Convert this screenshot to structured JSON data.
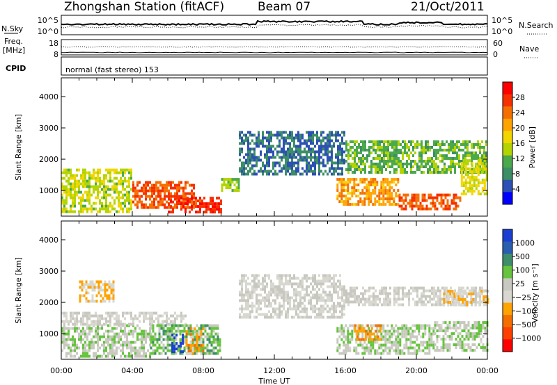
{
  "header": {
    "title": "Zhongshan Station (fitACF)",
    "beam": "Beam 07",
    "date": "21/Oct/2011"
  },
  "top_panels": {
    "nsky_label": "N.Sky",
    "nsearch_label": "N.Search",
    "sky_ticks": [
      "10^5",
      "10^0"
    ],
    "sky_right_ticks": [
      "10^5",
      "10^0"
    ],
    "freq_label": "Freq.",
    "freq_unit": "[MHz]",
    "freq_ticks": [
      "18",
      "8"
    ],
    "nave_ticks": [
      "60",
      "0"
    ],
    "nave_label": "Nave",
    "cpid_label": "CPID",
    "cpid_text": "normal (fast stereo) 153"
  },
  "x_axis": {
    "ticks": [
      "00:00",
      "04:00",
      "08:00",
      "12:00",
      "16:00",
      "20:00",
      "00:00"
    ],
    "label": "Time UT"
  },
  "power_panel": {
    "ylabel": "Slant Range [km]",
    "colorbar_label": "Power [dB]",
    "colorbar_ticks": [
      "28",
      "24",
      "20",
      "16",
      "12",
      "8",
      "4"
    ],
    "colors": [
      "#ff0000",
      "#f63000",
      "#f46f00",
      "#ffa300",
      "#f2d600",
      "#b4d400",
      "#4ba94b",
      "#3c8e65",
      "#2d50b4",
      "#0000ff"
    ]
  },
  "velocity_panel": {
    "ylabel": "Slant Range [km]",
    "colorbar_label": "Velocity [m s⁻¹]",
    "colorbar_ticks": [
      "1000",
      "500",
      "100",
      "25",
      "−25",
      "−100",
      "−500",
      "−1000"
    ],
    "colors": [
      "#1b3fd1",
      "#2a5fb0",
      "#3f8e6a",
      "#66c33d",
      "#c8c8c0",
      "#d8d8d0",
      "#ffa300",
      "#f46f00",
      "#ff4000",
      "#ff0000"
    ]
  },
  "chart_data": {
    "type": "heatmap",
    "title": "Zhongshan Station (fitACF)",
    "xlabel": "Time UT",
    "ylabel": "Slant Range [km]",
    "x_ticks": [
      "00:00",
      "04:00",
      "08:00",
      "12:00",
      "16:00",
      "20:00",
      "00:00"
    ],
    "ylim": [
      180,
      4600
    ],
    "y_ticks": [
      1000,
      2000,
      3000,
      4000
    ],
    "series": [
      {
        "name": "Power [dB]",
        "clim": [
          0,
          30
        ],
        "regions": [
          {
            "t": [
              0.0,
              4.0
            ],
            "r": [
              300,
              1700
            ],
            "v": 14
          },
          {
            "t": [
              4.0,
              7.5
            ],
            "r": [
              500,
              1300
            ],
            "v": 24
          },
          {
            "t": [
              6.0,
              9.0
            ],
            "r": [
              350,
              800
            ],
            "v": 26
          },
          {
            "t": [
              9.0,
              10.0
            ],
            "r": [
              1000,
              1400
            ],
            "v": 12
          },
          {
            "t": [
              10.0,
              16.0
            ],
            "r": [
              1500,
              2900
            ],
            "v": 6
          },
          {
            "t": [
              15.5,
              19.0
            ],
            "r": [
              600,
              1400
            ],
            "v": 20
          },
          {
            "t": [
              19.0,
              22.5
            ],
            "r": [
              400,
              900
            ],
            "v": 24
          },
          {
            "t": [
              16.0,
              24.0
            ],
            "r": [
              1600,
              2600
            ],
            "v": 11
          },
          {
            "t": [
              22.5,
              24.0
            ],
            "r": [
              900,
              2000
            ],
            "v": 15
          }
        ]
      },
      {
        "name": "Velocity [m s⁻¹]",
        "clim": [
          -1000,
          1000
        ],
        "regions": [
          {
            "t": [
              0.0,
              5.0
            ],
            "r": [
              300,
              1300
            ],
            "v": 150
          },
          {
            "t": [
              0.0,
              7.0
            ],
            "r": [
              1300,
              1700
            ],
            "v": 0
          },
          {
            "t": [
              1.0,
              3.0
            ],
            "r": [
              2000,
              2700
            ],
            "v": -200
          },
          {
            "t": [
              5.0,
              9.0
            ],
            "r": [
              350,
              1300
            ],
            "v": 300
          },
          {
            "t": [
              6.2,
              6.9
            ],
            "r": [
              400,
              1000
            ],
            "v": 900
          },
          {
            "t": [
              7.0,
              8.0
            ],
            "r": [
              400,
              1200
            ],
            "v": -300
          },
          {
            "t": [
              10.0,
              16.0
            ],
            "r": [
              1500,
              2900
            ],
            "v": 0
          },
          {
            "t": [
              15.5,
              21.0
            ],
            "r": [
              400,
              1300
            ],
            "v": 150
          },
          {
            "t": [
              16.5,
              18.0
            ],
            "r": [
              800,
              1300
            ],
            "v": -400
          },
          {
            "t": [
              16.0,
              24.0
            ],
            "r": [
              1900,
              2500
            ],
            "v": 0
          },
          {
            "t": [
              21.5,
              24.0
            ],
            "r": [
              1900,
              2400
            ],
            "v": -150
          },
          {
            "t": [
              21.0,
              24.0
            ],
            "r": [
              500,
              1400
            ],
            "v": 150
          }
        ]
      }
    ]
  }
}
